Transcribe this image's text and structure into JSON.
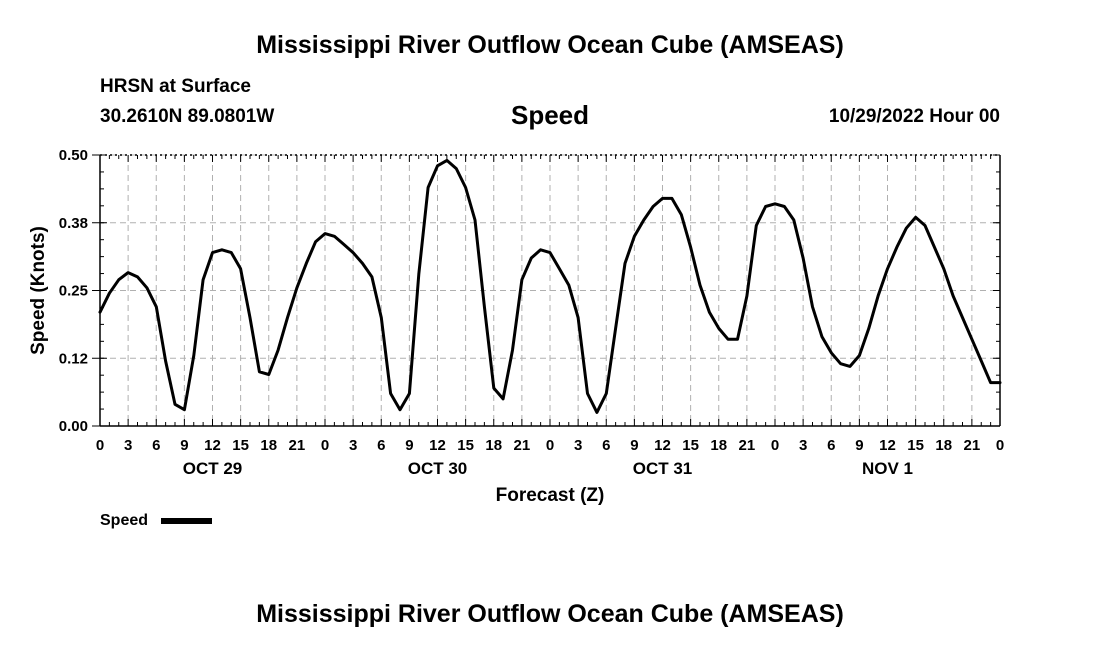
{
  "header": {
    "title": "Mississippi River Outflow Ocean Cube (AMSEAS)",
    "location": "HRSN at Surface",
    "coords": "30.2610N  89.0801W",
    "variable": "Speed",
    "timestamp": "10/29/2022 Hour 00"
  },
  "footer": {
    "title": "Mississippi River Outflow Ocean Cube (AMSEAS)"
  },
  "chart_data": {
    "type": "line",
    "title": "Speed",
    "xlabel": "Forecast (Z)",
    "ylabel": "Speed (Knots)",
    "xlim": [
      0,
      96
    ],
    "ylim": [
      0,
      0.5
    ],
    "grid": true,
    "y_ticks": [
      0.0,
      0.125,
      0.25,
      0.375,
      0.5
    ],
    "y_tick_labels": [
      "0.00",
      "0.12",
      "0.25",
      "0.38",
      "0.50"
    ],
    "x_ticks": [
      0,
      3,
      6,
      9,
      12,
      15,
      18,
      21,
      24,
      27,
      30,
      33,
      36,
      39,
      42,
      45,
      48,
      51,
      54,
      57,
      60,
      63,
      66,
      69,
      72,
      75,
      78,
      81,
      84,
      87,
      90,
      93,
      96
    ],
    "x_tick_labels": [
      "0",
      "3",
      "6",
      "9",
      "12",
      "15",
      "18",
      "21",
      "0",
      "3",
      "6",
      "9",
      "12",
      "15",
      "18",
      "21",
      "0",
      "3",
      "6",
      "9",
      "12",
      "15",
      "18",
      "21",
      "0",
      "3",
      "6",
      "9",
      "12",
      "15",
      "18",
      "21",
      "0"
    ],
    "day_labels": [
      {
        "x": 12,
        "label": "OCT 29"
      },
      {
        "x": 36,
        "label": "OCT 30"
      },
      {
        "x": 60,
        "label": "OCT 31"
      },
      {
        "x": 84,
        "label": "NOV 1"
      }
    ],
    "legend": {
      "position": "bottom-left",
      "entries": [
        "Speed"
      ]
    },
    "series": [
      {
        "name": "Speed",
        "x": [
          0,
          1,
          2,
          3,
          4,
          5,
          6,
          7,
          8,
          9,
          10,
          11,
          12,
          13,
          14,
          15,
          16,
          17,
          18,
          19,
          20,
          21,
          22,
          23,
          24,
          25,
          26,
          27,
          28,
          29,
          30,
          31,
          32,
          33,
          34,
          35,
          36,
          37,
          38,
          39,
          40,
          41,
          42,
          43,
          44,
          45,
          46,
          47,
          48,
          49,
          50,
          51,
          52,
          53,
          54,
          55,
          56,
          57,
          58,
          59,
          60,
          61,
          62,
          63,
          64,
          65,
          66,
          67,
          68,
          69,
          70,
          71,
          72,
          73,
          74,
          75,
          76,
          77,
          78,
          79,
          80,
          81,
          82,
          83,
          84,
          85,
          86,
          87,
          88,
          89,
          90,
          91,
          92,
          93,
          94,
          95,
          96
        ],
        "values": [
          0.21,
          0.245,
          0.27,
          0.283,
          0.275,
          0.255,
          0.22,
          0.12,
          0.04,
          0.03,
          0.13,
          0.27,
          0.32,
          0.325,
          0.32,
          0.29,
          0.2,
          0.1,
          0.095,
          0.14,
          0.2,
          0.255,
          0.3,
          0.34,
          0.355,
          0.35,
          0.335,
          0.32,
          0.3,
          0.275,
          0.2,
          0.06,
          0.03,
          0.06,
          0.28,
          0.44,
          0.48,
          0.49,
          0.475,
          0.44,
          0.38,
          0.22,
          0.07,
          0.05,
          0.14,
          0.27,
          0.31,
          0.325,
          0.32,
          0.29,
          0.26,
          0.2,
          0.06,
          0.025,
          0.06,
          0.18,
          0.3,
          0.35,
          0.38,
          0.405,
          0.42,
          0.42,
          0.39,
          0.33,
          0.26,
          0.21,
          0.18,
          0.16,
          0.16,
          0.24,
          0.37,
          0.405,
          0.41,
          0.405,
          0.38,
          0.31,
          0.22,
          0.165,
          0.135,
          0.115,
          0.11,
          0.13,
          0.18,
          0.24,
          0.29,
          0.33,
          0.365,
          0.385,
          0.37,
          0.33,
          0.29,
          0.24,
          0.2,
          0.16,
          0.12,
          0.08,
          0.08
        ]
      }
    ]
  }
}
